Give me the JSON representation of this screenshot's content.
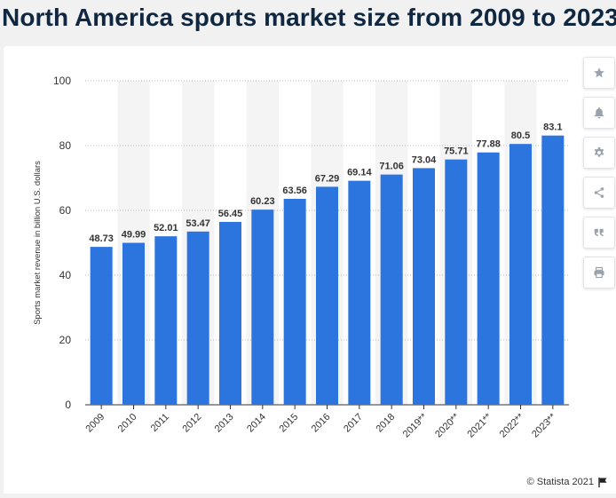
{
  "page": {
    "title": "North America sports market size from 2009 to 2023 (",
    "credit": "© Statista 2021"
  },
  "toolbar": {
    "buttons": [
      {
        "icon": "star-icon"
      },
      {
        "icon": "bell-icon"
      },
      {
        "icon": "gear-icon"
      },
      {
        "icon": "share-icon"
      },
      {
        "icon": "quote-icon"
      },
      {
        "icon": "print-icon"
      }
    ]
  },
  "colors": {
    "bar": "#2c74de",
    "title": "#0f2740",
    "icon": "#9aa3ad"
  },
  "chart_data": {
    "type": "bar",
    "categories": [
      "2009",
      "2010",
      "2011",
      "2012",
      "2013",
      "2014",
      "2015",
      "2016",
      "2017",
      "2018",
      "2019**",
      "2020**",
      "2021**",
      "2022**",
      "2023**"
    ],
    "values": [
      48.73,
      49.99,
      52.01,
      53.47,
      56.45,
      60.23,
      63.56,
      67.29,
      69.14,
      71.06,
      73.04,
      75.71,
      77.88,
      80.5,
      83.1
    ],
    "value_labels": [
      "48.73",
      "49.99",
      "52.01",
      "53.47",
      "56.45",
      "60.23",
      "63.56",
      "67.29",
      "69.14",
      "71.06",
      "73.04",
      "75.71",
      "77.88",
      "80.5",
      "83.1"
    ],
    "ylabel": "Sports market revenue in billion U.S. dollars",
    "yticks": [
      "0",
      "20",
      "40",
      "60",
      "80",
      "100"
    ],
    "ylim": [
      0,
      100
    ],
    "grid": true,
    "alternating_column_shading": true
  }
}
